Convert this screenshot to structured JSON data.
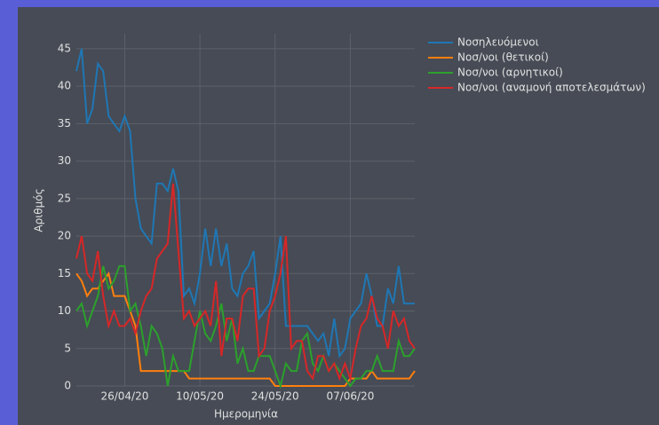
{
  "chart_data": {
    "type": "line",
    "xlabel": "Ημερομηνία",
    "ylabel": "Αριθμός",
    "x": [
      "2020-04-17",
      "2020-04-18",
      "2020-04-19",
      "2020-04-20",
      "2020-04-21",
      "2020-04-22",
      "2020-04-23",
      "2020-04-24",
      "2020-04-25",
      "2020-04-26",
      "2020-04-27",
      "2020-04-28",
      "2020-04-29",
      "2020-04-30",
      "2020-05-01",
      "2020-05-02",
      "2020-05-03",
      "2020-05-04",
      "2020-05-05",
      "2020-05-06",
      "2020-05-07",
      "2020-05-08",
      "2020-05-09",
      "2020-05-10",
      "2020-05-11",
      "2020-05-12",
      "2020-05-13",
      "2020-05-14",
      "2020-05-15",
      "2020-05-16",
      "2020-05-17",
      "2020-05-18",
      "2020-05-19",
      "2020-05-20",
      "2020-05-21",
      "2020-05-22",
      "2020-05-23",
      "2020-05-24",
      "2020-05-25",
      "2020-05-26",
      "2020-05-27",
      "2020-05-28",
      "2020-05-29",
      "2020-05-30",
      "2020-05-31",
      "2020-06-01",
      "2020-06-02",
      "2020-06-03",
      "2020-06-04",
      "2020-06-05",
      "2020-06-06",
      "2020-06-07",
      "2020-06-08",
      "2020-06-09",
      "2020-06-10",
      "2020-06-11",
      "2020-06-12",
      "2020-06-13",
      "2020-06-14",
      "2020-06-15",
      "2020-06-16",
      "2020-06-17",
      "2020-06-18",
      "2020-06-19"
    ],
    "series": [
      {
        "name": "Νοσηλευόμενοι",
        "color": "#1f77b4",
        "values": [
          42,
          45,
          35,
          37,
          43,
          42,
          36,
          35,
          34,
          36,
          34,
          25,
          21,
          20,
          19,
          27,
          27,
          26,
          29,
          26,
          12,
          13,
          11,
          15,
          21,
          16,
          21,
          16,
          19,
          13,
          12,
          15,
          16,
          18,
          9,
          10,
          11,
          15,
          20,
          8,
          8,
          8,
          8,
          8,
          7,
          6,
          7,
          4,
          9,
          4,
          5,
          9,
          10,
          11,
          15,
          12,
          8,
          8,
          13,
          11,
          16,
          11,
          11,
          11
        ]
      },
      {
        "name": "Νοσ/νοι (θετικοί)",
        "color": "#ff7f0e",
        "values": [
          15,
          14,
          12,
          13,
          13,
          14,
          15,
          12,
          12,
          12,
          10,
          8,
          2,
          2,
          2,
          2,
          2,
          2,
          2,
          2,
          2,
          1,
          1,
          1,
          1,
          1,
          1,
          1,
          1,
          1,
          1,
          1,
          1,
          1,
          1,
          1,
          1,
          0,
          0,
          0,
          0,
          0,
          0,
          0,
          0,
          0,
          0,
          0,
          0,
          0,
          0,
          1,
          1,
          1,
          1,
          2,
          1,
          1,
          1,
          1,
          1,
          1,
          1,
          2
        ]
      },
      {
        "name": "Νοσ/νοι (αρνητικοί)",
        "color": "#2ca02c",
        "values": [
          10,
          11,
          8,
          10,
          12,
          16,
          13,
          14,
          16,
          16,
          10,
          11,
          8,
          4,
          8,
          7,
          5,
          0,
          4,
          2,
          2,
          2,
          6,
          10,
          7,
          6,
          8,
          11,
          6,
          9,
          3,
          5,
          2,
          2,
          4,
          4,
          4,
          2,
          0,
          3,
          2,
          2,
          6,
          7,
          3,
          2,
          4,
          2,
          3,
          2,
          1,
          0,
          1,
          1,
          2,
          2,
          4,
          2,
          2,
          2,
          6,
          4,
          4,
          5
        ]
      },
      {
        "name": "Νοσ/νοι (αναμονή αποτελεσμάτων)",
        "color": "#d62728",
        "values": [
          17,
          20,
          15,
          14,
          18,
          12,
          8,
          10,
          8,
          8,
          9,
          7,
          10,
          12,
          13,
          17,
          18,
          19,
          27,
          18,
          9,
          10,
          8,
          9,
          10,
          8,
          14,
          4,
          9,
          9,
          6,
          12,
          13,
          13,
          4,
          5,
          10,
          12,
          15,
          20,
          5,
          6,
          6,
          2,
          1,
          4,
          4,
          2,
          3,
          1,
          3,
          1,
          5,
          8,
          9,
          12,
          9,
          8,
          5,
          10,
          8,
          9,
          6,
          5
        ]
      }
    ],
    "xlim": [
      "2020-04-17",
      "2020-06-19"
    ],
    "xticks": [
      {
        "value": "2020-04-26",
        "label": "26/04/20"
      },
      {
        "value": "2020-05-10",
        "label": "10/05/20"
      },
      {
        "value": "2020-05-24",
        "label": "24/05/20"
      },
      {
        "value": "2020-06-07",
        "label": "07/06/20"
      }
    ],
    "ylim": [
      0,
      47
    ],
    "yticks": [
      0,
      5,
      10,
      15,
      20,
      25,
      30,
      35,
      40,
      45
    ],
    "grid": true,
    "legend": "right"
  }
}
